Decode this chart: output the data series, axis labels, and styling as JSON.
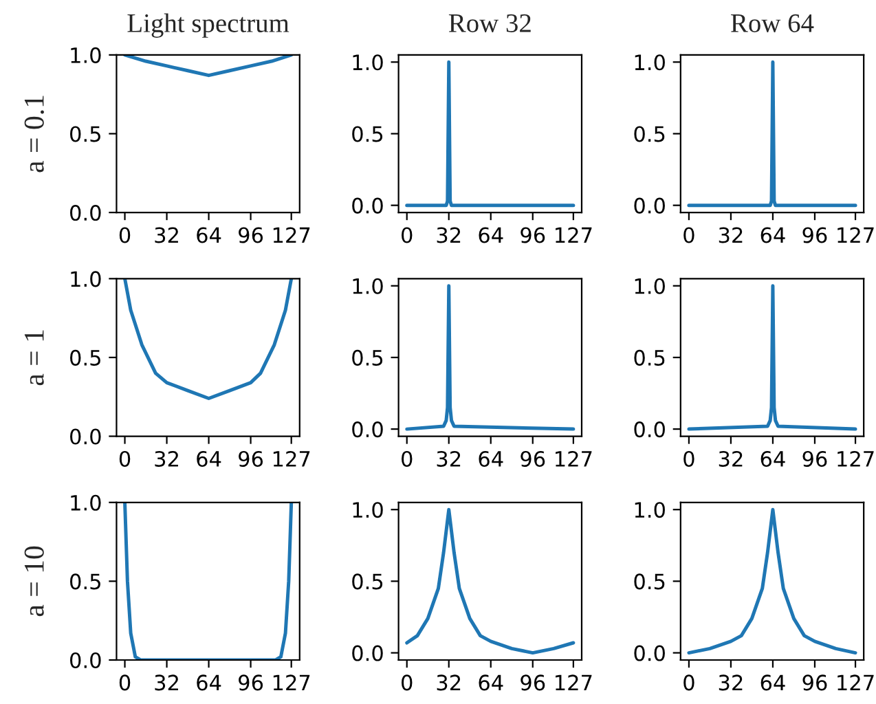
{
  "chart_data": [
    {
      "type": "line",
      "title": "Light spectrum",
      "ylabel": "a = 0.1",
      "xlim": [
        -6.35,
        133.35
      ],
      "xticks": [
        0,
        32,
        64,
        96,
        127
      ],
      "ylim": [
        0,
        1
      ],
      "yticks": [
        {
          "value": 0,
          "label": "0.0"
        },
        {
          "value": 0.5,
          "label": "0.5"
        },
        {
          "value": 1,
          "label": "1.0"
        }
      ],
      "series": [
        {
          "color": "#1f77b4",
          "x": [
            0,
            16,
            32,
            48,
            64,
            80,
            96,
            112,
            127
          ],
          "values": [
            1.0,
            0.96,
            0.93,
            0.9,
            0.87,
            0.9,
            0.93,
            0.96,
            1.0
          ]
        }
      ]
    },
    {
      "type": "line",
      "title": "Row 32",
      "xlim": [
        -6.35,
        133.35
      ],
      "xticks": [
        0,
        32,
        64,
        96,
        127
      ],
      "ylim": [
        -0.05,
        1.05
      ],
      "yticks": [
        {
          "value": 0,
          "label": "0.0"
        },
        {
          "value": 0.5,
          "label": "0.5"
        },
        {
          "value": 1,
          "label": "1.0"
        }
      ],
      "series": [
        {
          "color": "#1f77b4",
          "x": [
            0,
            30,
            31,
            32,
            33,
            34,
            127
          ],
          "values": [
            0.0,
            0.0,
            0.03,
            1.0,
            0.03,
            0.0,
            0.0
          ]
        }
      ]
    },
    {
      "type": "line",
      "title": "Row 64",
      "xlim": [
        -6.35,
        133.35
      ],
      "xticks": [
        0,
        32,
        64,
        96,
        127
      ],
      "ylim": [
        -0.05,
        1.05
      ],
      "yticks": [
        {
          "value": 0,
          "label": "0.0"
        },
        {
          "value": 0.5,
          "label": "0.5"
        },
        {
          "value": 1,
          "label": "1.0"
        }
      ],
      "series": [
        {
          "color": "#1f77b4",
          "x": [
            0,
            62,
            63,
            64,
            65,
            66,
            127
          ],
          "values": [
            0.0,
            0.0,
            0.03,
            1.0,
            0.03,
            0.0,
            0.0
          ]
        }
      ]
    },
    {
      "type": "line",
      "ylabel": "a = 1",
      "xlim": [
        -6.35,
        133.35
      ],
      "xticks": [
        0,
        32,
        64,
        96,
        127
      ],
      "ylim": [
        0,
        1
      ],
      "yticks": [
        {
          "value": 0,
          "label": "0.0"
        },
        {
          "value": 0.5,
          "label": "0.5"
        },
        {
          "value": 1,
          "label": "1.0"
        }
      ],
      "series": [
        {
          "color": "#1f77b4",
          "x": [
            0,
            4.5,
            13,
            23.5,
            32,
            48,
            64,
            80,
            96,
            103.5,
            114,
            122.5,
            127
          ],
          "values": [
            1.0,
            0.8,
            0.58,
            0.4,
            0.34,
            0.29,
            0.24,
            0.29,
            0.34,
            0.4,
            0.58,
            0.8,
            1.0
          ]
        }
      ]
    },
    {
      "type": "line",
      "xlim": [
        -6.35,
        133.35
      ],
      "xticks": [
        0,
        32,
        64,
        96,
        127
      ],
      "ylim": [
        -0.05,
        1.05
      ],
      "yticks": [
        {
          "value": 0,
          "label": "0.0"
        },
        {
          "value": 0.5,
          "label": "0.5"
        },
        {
          "value": 1,
          "label": "1.0"
        }
      ],
      "series": [
        {
          "color": "#1f77b4",
          "x": [
            0,
            28,
            30,
            31,
            32,
            33,
            34,
            36,
            127
          ],
          "values": [
            0.0,
            0.02,
            0.06,
            0.15,
            1.0,
            0.15,
            0.06,
            0.02,
            0.0
          ]
        }
      ]
    },
    {
      "type": "line",
      "xlim": [
        -6.35,
        133.35
      ],
      "xticks": [
        0,
        32,
        64,
        96,
        127
      ],
      "ylim": [
        -0.05,
        1.05
      ],
      "yticks": [
        {
          "value": 0,
          "label": "0.0"
        },
        {
          "value": 0.5,
          "label": "0.5"
        },
        {
          "value": 1,
          "label": "1.0"
        }
      ],
      "series": [
        {
          "color": "#1f77b4",
          "x": [
            0,
            60,
            62,
            63,
            64,
            65,
            66,
            68,
            127
          ],
          "values": [
            0.0,
            0.02,
            0.06,
            0.15,
            1.0,
            0.15,
            0.06,
            0.02,
            0.0
          ]
        }
      ]
    },
    {
      "type": "line",
      "ylabel": "a = 10",
      "xlim": [
        -6.35,
        133.35
      ],
      "xticks": [
        0,
        32,
        64,
        96,
        127
      ],
      "ylim": [
        0,
        1
      ],
      "yticks": [
        {
          "value": 0,
          "label": "0.0"
        },
        {
          "value": 0.5,
          "label": "0.5"
        },
        {
          "value": 1,
          "label": "1.0"
        }
      ],
      "series": [
        {
          "color": "#1f77b4",
          "x": [
            0,
            2,
            4.5,
            8,
            12,
            64,
            115,
            119,
            122.5,
            125,
            127
          ],
          "values": [
            1.0,
            0.5,
            0.17,
            0.02,
            0.0,
            0.0,
            0.0,
            0.02,
            0.17,
            0.5,
            1.0
          ]
        }
      ]
    },
    {
      "type": "line",
      "xlim": [
        -6.35,
        133.35
      ],
      "xticks": [
        0,
        32,
        64,
        96,
        127
      ],
      "ylim": [
        -0.05,
        1.05
      ],
      "yticks": [
        {
          "value": 0,
          "label": "0.0"
        },
        {
          "value": 0.5,
          "label": "0.5"
        },
        {
          "value": 1,
          "label": "1.0"
        }
      ],
      "series": [
        {
          "color": "#1f77b4",
          "x": [
            0,
            8,
            16,
            24,
            28,
            32,
            36,
            40,
            48,
            56,
            64,
            80,
            96,
            112,
            127
          ],
          "values": [
            0.07,
            0.12,
            0.24,
            0.45,
            0.7,
            1.0,
            0.7,
            0.45,
            0.24,
            0.12,
            0.08,
            0.03,
            0.0,
            0.03,
            0.07
          ]
        }
      ]
    },
    {
      "type": "line",
      "xlim": [
        -6.35,
        133.35
      ],
      "xticks": [
        0,
        32,
        64,
        96,
        127
      ],
      "ylim": [
        -0.05,
        1.05
      ],
      "yticks": [
        {
          "value": 0,
          "label": "0.0"
        },
        {
          "value": 0.5,
          "label": "0.5"
        },
        {
          "value": 1,
          "label": "1.0"
        }
      ],
      "series": [
        {
          "color": "#1f77b4",
          "x": [
            0,
            16,
            32,
            40,
            48,
            56,
            60,
            64,
            68,
            72,
            80,
            88,
            96,
            112,
            127
          ],
          "values": [
            0.0,
            0.03,
            0.08,
            0.12,
            0.24,
            0.45,
            0.7,
            1.0,
            0.7,
            0.45,
            0.24,
            0.12,
            0.08,
            0.03,
            0.0
          ]
        }
      ]
    }
  ]
}
